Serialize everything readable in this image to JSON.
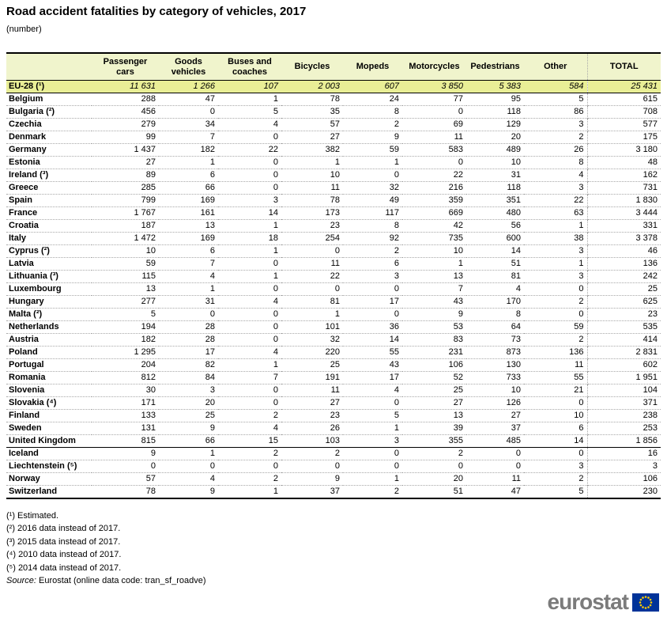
{
  "chart_data": {
    "type": "table",
    "title": "Road accident fatalities by category of vehicles, 2017",
    "subtitle": "(number)",
    "columns": [
      "",
      "Passenger cars",
      "Goods vehicles",
      "Buses and coaches",
      "Bicycles",
      "Mopeds",
      "Motorcycles",
      "Pedestrians",
      "Other",
      "TOTAL"
    ],
    "rows": [
      {
        "label": "EU-28 (¹)",
        "style": "aggregate",
        "section": "eu",
        "values": [
          "11 631",
          "1 266",
          "107",
          "2 003",
          "607",
          "3 850",
          "5 383",
          "584",
          "25 431"
        ]
      },
      {
        "label": "Belgium",
        "section": "eu",
        "values": [
          "288",
          "47",
          "1",
          "78",
          "24",
          "77",
          "95",
          "5",
          "615"
        ]
      },
      {
        "label": "Bulgaria (²)",
        "section": "eu",
        "values": [
          "456",
          "0",
          "5",
          "35",
          "8",
          "0",
          "118",
          "86",
          "708"
        ]
      },
      {
        "label": "Czechia",
        "section": "eu",
        "values": [
          "279",
          "34",
          "4",
          "57",
          "2",
          "69",
          "129",
          "3",
          "577"
        ]
      },
      {
        "label": "Denmark",
        "section": "eu",
        "values": [
          "99",
          "7",
          "0",
          "27",
          "9",
          "11",
          "20",
          "2",
          "175"
        ]
      },
      {
        "label": "Germany",
        "section": "eu",
        "values": [
          "1 437",
          "182",
          "22",
          "382",
          "59",
          "583",
          "489",
          "26",
          "3 180"
        ]
      },
      {
        "label": "Estonia",
        "section": "eu",
        "values": [
          "27",
          "1",
          "0",
          "1",
          "1",
          "0",
          "10",
          "8",
          "48"
        ]
      },
      {
        "label": "Ireland (³)",
        "section": "eu",
        "values": [
          "89",
          "6",
          "0",
          "10",
          "0",
          "22",
          "31",
          "4",
          "162"
        ]
      },
      {
        "label": "Greece",
        "section": "eu",
        "values": [
          "285",
          "66",
          "0",
          "11",
          "32",
          "216",
          "118",
          "3",
          "731"
        ]
      },
      {
        "label": "Spain",
        "section": "eu",
        "values": [
          "799",
          "169",
          "3",
          "78",
          "49",
          "359",
          "351",
          "22",
          "1 830"
        ]
      },
      {
        "label": "France",
        "section": "eu",
        "values": [
          "1 767",
          "161",
          "14",
          "173",
          "117",
          "669",
          "480",
          "63",
          "3 444"
        ]
      },
      {
        "label": "Croatia",
        "section": "eu",
        "values": [
          "187",
          "13",
          "1",
          "23",
          "8",
          "42",
          "56",
          "1",
          "331"
        ]
      },
      {
        "label": "Italy",
        "section": "eu",
        "values": [
          "1 472",
          "169",
          "18",
          "254",
          "92",
          "735",
          "600",
          "38",
          "3 378"
        ]
      },
      {
        "label": "Cyprus (²)",
        "section": "eu",
        "values": [
          "10",
          "6",
          "1",
          "0",
          "2",
          "10",
          "14",
          "3",
          "46"
        ]
      },
      {
        "label": "Latvia",
        "section": "eu",
        "values": [
          "59",
          "7",
          "0",
          "11",
          "6",
          "1",
          "51",
          "1",
          "136"
        ]
      },
      {
        "label": "Lithuania (³)",
        "section": "eu",
        "values": [
          "115",
          "4",
          "1",
          "22",
          "3",
          "13",
          "81",
          "3",
          "242"
        ]
      },
      {
        "label": "Luxembourg",
        "section": "eu",
        "values": [
          "13",
          "1",
          "0",
          "0",
          "0",
          "7",
          "4",
          "0",
          "25"
        ]
      },
      {
        "label": "Hungary",
        "section": "eu",
        "values": [
          "277",
          "31",
          "4",
          "81",
          "17",
          "43",
          "170",
          "2",
          "625"
        ]
      },
      {
        "label": "Malta (²)",
        "section": "eu",
        "values": [
          "5",
          "0",
          "0",
          "1",
          "0",
          "9",
          "8",
          "0",
          "23"
        ]
      },
      {
        "label": "Netherlands",
        "section": "eu",
        "values": [
          "194",
          "28",
          "0",
          "101",
          "36",
          "53",
          "64",
          "59",
          "535"
        ]
      },
      {
        "label": "Austria",
        "section": "eu",
        "values": [
          "182",
          "28",
          "0",
          "32",
          "14",
          "83",
          "73",
          "2",
          "414"
        ]
      },
      {
        "label": "Poland",
        "section": "eu",
        "values": [
          "1 295",
          "17",
          "4",
          "220",
          "55",
          "231",
          "873",
          "136",
          "2 831"
        ]
      },
      {
        "label": "Portugal",
        "section": "eu",
        "values": [
          "204",
          "82",
          "1",
          "25",
          "43",
          "106",
          "130",
          "11",
          "602"
        ]
      },
      {
        "label": "Romania",
        "section": "eu",
        "values": [
          "812",
          "84",
          "7",
          "191",
          "17",
          "52",
          "733",
          "55",
          "1 951"
        ]
      },
      {
        "label": "Slovenia",
        "section": "eu",
        "values": [
          "30",
          "3",
          "0",
          "11",
          "4",
          "25",
          "10",
          "21",
          "104"
        ]
      },
      {
        "label": "Slovakia (⁴)",
        "section": "eu",
        "values": [
          "171",
          "20",
          "0",
          "27",
          "0",
          "27",
          "126",
          "0",
          "371"
        ]
      },
      {
        "label": "Finland",
        "section": "eu",
        "values": [
          "133",
          "25",
          "2",
          "23",
          "5",
          "13",
          "27",
          "10",
          "238"
        ]
      },
      {
        "label": "Sweden",
        "section": "eu",
        "values": [
          "131",
          "9",
          "4",
          "26",
          "1",
          "39",
          "37",
          "6",
          "253"
        ]
      },
      {
        "label": "United Kingdom",
        "section": "eu",
        "values": [
          "815",
          "66",
          "15",
          "103",
          "3",
          "355",
          "485",
          "14",
          "1 856"
        ]
      },
      {
        "label": "Iceland",
        "section": "efta",
        "values": [
          "9",
          "1",
          "2",
          "2",
          "0",
          "2",
          "0",
          "0",
          "16"
        ]
      },
      {
        "label": "Liechtenstein (⁵)",
        "section": "efta",
        "values": [
          "0",
          "0",
          "0",
          "0",
          "0",
          "0",
          "0",
          "3",
          "3"
        ]
      },
      {
        "label": "Norway",
        "section": "efta",
        "values": [
          "57",
          "4",
          "2",
          "9",
          "1",
          "20",
          "11",
          "2",
          "106"
        ]
      },
      {
        "label": "Switzerland",
        "section": "efta",
        "values": [
          "78",
          "9",
          "1",
          "37",
          "2",
          "51",
          "47",
          "5",
          "230"
        ]
      }
    ],
    "colors": {
      "header_bg": "#f0f4cc",
      "aggregate_row_bg": "#e9ee96",
      "flag_blue": "#003399",
      "flag_stars": "#ffcc00",
      "logo_gray": "#7b7b7b"
    }
  },
  "footnotes": [
    "(¹) Estimated.",
    "(²) 2016 data instead of 2017.",
    "(³) 2015 data instead of 2017.",
    "(⁴) 2010 data instead of 2017.",
    "(⁵) 2014 data instead of 2017."
  ],
  "source": {
    "prefix": "Source:",
    "text": "Eurostat (online data code: tran_sf_roadve)"
  },
  "logo": {
    "text": "eurostat"
  }
}
